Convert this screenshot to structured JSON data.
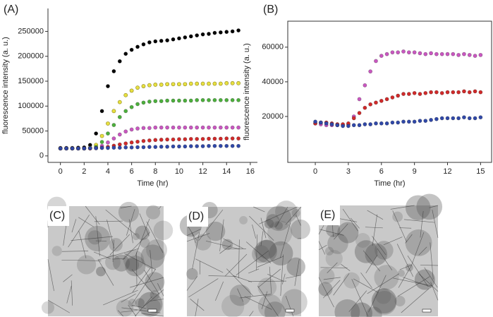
{
  "chart_data": [
    {
      "type": "scatter",
      "panel": "(A)",
      "x_label": "Time (hr)",
      "y_label": "fluorescence intensity (a. u.)",
      "xlim": [
        -1.05,
        16.6
      ],
      "ylim": [
        -13000,
        296000
      ],
      "xticks": [
        0,
        2,
        4,
        6,
        8,
        10,
        12,
        14,
        16
      ],
      "yticks": [
        0,
        50000,
        100000,
        150000,
        200000,
        250000
      ],
      "frame": false,
      "x": [
        0,
        0.5,
        1,
        1.5,
        2,
        2.5,
        3,
        3.5,
        4,
        4.5,
        5,
        5.5,
        6,
        6.5,
        7,
        7.5,
        8,
        8.5,
        9,
        9.5,
        10,
        10.5,
        11,
        11.5,
        12,
        12.5,
        13,
        13.5,
        14,
        14.5,
        15
      ],
      "series": [
        {
          "color": "#000000",
          "values": [
            16000,
            16000,
            16000,
            16500,
            17000,
            22000,
            45000,
            90000,
            140000,
            170000,
            190000,
            205000,
            213000,
            219000,
            224000,
            228000,
            230000,
            231000,
            232000,
            234000,
            236000,
            238000,
            240000,
            242000,
            244000,
            245000,
            247000,
            248000,
            249000,
            250000,
            252000
          ]
        },
        {
          "color": "#e8e040",
          "values": [
            15000,
            15000,
            15000,
            15000,
            15000,
            16000,
            22000,
            40000,
            65000,
            90000,
            108000,
            122000,
            131000,
            137000,
            140000,
            142000,
            143000,
            143000,
            144000,
            144000,
            144000,
            144000,
            145000,
            145000,
            145000,
            145000,
            145000,
            145000,
            146000,
            146000,
            146000
          ]
        },
        {
          "color": "#4caf3c",
          "values": [
            15000,
            15000,
            15000,
            15000,
            15000,
            15500,
            18000,
            28000,
            45000,
            62000,
            78000,
            90000,
            98000,
            104000,
            107000,
            109000,
            110000,
            110000,
            111000,
            111000,
            111000,
            111000,
            111000,
            112000,
            112000,
            112000,
            112000,
            112000,
            112000,
            112000,
            112000
          ]
        },
        {
          "color": "#c957c0",
          "values": [
            15000,
            15000,
            15000,
            15000,
            15000,
            15500,
            16000,
            20000,
            27000,
            35000,
            43000,
            49000,
            53000,
            55000,
            56000,
            56000,
            57000,
            57000,
            57000,
            57000,
            57000,
            57000,
            57000,
            57000,
            57000,
            57000,
            57000,
            57000,
            57000,
            57000,
            57000
          ]
        },
        {
          "color": "#d02a2a",
          "values": [
            15000,
            15000,
            15000,
            15000,
            15000,
            15000,
            15500,
            16500,
            18000,
            20500,
            23000,
            25000,
            27000,
            28500,
            30000,
            31000,
            32000,
            32500,
            33000,
            33000,
            33500,
            33500,
            34000,
            34000,
            34000,
            34500,
            34500,
            34500,
            35000,
            35000,
            35000
          ]
        },
        {
          "color": "#3048a8",
          "values": [
            15000,
            15000,
            15000,
            15000,
            15000,
            15500,
            15500,
            16000,
            16000,
            16500,
            16500,
            17000,
            17000,
            17500,
            17500,
            18000,
            18000,
            18500,
            18500,
            19000,
            19000,
            19000,
            19500,
            19500,
            19500,
            20000,
            20000,
            20000,
            20000,
            20000,
            20000
          ]
        }
      ]
    },
    {
      "type": "scatter",
      "panel": "(B)",
      "x_label": "Time (hr)",
      "y_label": "fluorescence intensity (a. u.)",
      "xlim": [
        -2.5,
        16
      ],
      "ylim": [
        -6500,
        75000
      ],
      "xticks": [
        0,
        3,
        6,
        9,
        12,
        15
      ],
      "yticks": [
        20000,
        40000,
        60000
      ],
      "frame": true,
      "x": [
        0,
        0.5,
        1,
        1.5,
        2,
        2.5,
        3,
        3.5,
        4,
        4.5,
        5,
        5.5,
        6,
        6.5,
        7,
        7.5,
        8,
        8.5,
        9,
        9.5,
        10,
        10.5,
        11,
        11.5,
        12,
        12.5,
        13,
        13.5,
        14,
        14.5,
        15
      ],
      "series": [
        {
          "color": "#c957c0",
          "values": [
            16000,
            15500,
            15000,
            15000,
            15000,
            15000,
            15500,
            20000,
            30000,
            38000,
            46000,
            52000,
            55000,
            56000,
            57000,
            57000,
            57500,
            57000,
            57000,
            56500,
            56000,
            56500,
            56000,
            56000,
            56000,
            56000,
            55500,
            56000,
            55500,
            55000,
            55500
          ]
        },
        {
          "color": "#d02a2a",
          "values": [
            16000,
            16500,
            16500,
            16000,
            15500,
            15500,
            16000,
            19000,
            22000,
            25000,
            27000,
            28000,
            29000,
            30000,
            31000,
            32000,
            33000,
            33000,
            33500,
            33000,
            33500,
            34000,
            34000,
            33500,
            34000,
            34000,
            34000,
            34500,
            34000,
            34500,
            34000
          ]
        },
        {
          "color": "#3048a8",
          "values": [
            17000,
            16500,
            16000,
            15500,
            15000,
            14500,
            14500,
            15000,
            15000,
            15500,
            15500,
            16000,
            16000,
            16000,
            16500,
            16500,
            17000,
            17000,
            17000,
            17500,
            17500,
            18000,
            18500,
            19000,
            19000,
            19000,
            19000,
            19500,
            19000,
            19000,
            19500
          ]
        }
      ]
    }
  ],
  "images": [
    {
      "label": "(C)"
    },
    {
      "label": "(D)"
    },
    {
      "label": "(E)"
    }
  ]
}
